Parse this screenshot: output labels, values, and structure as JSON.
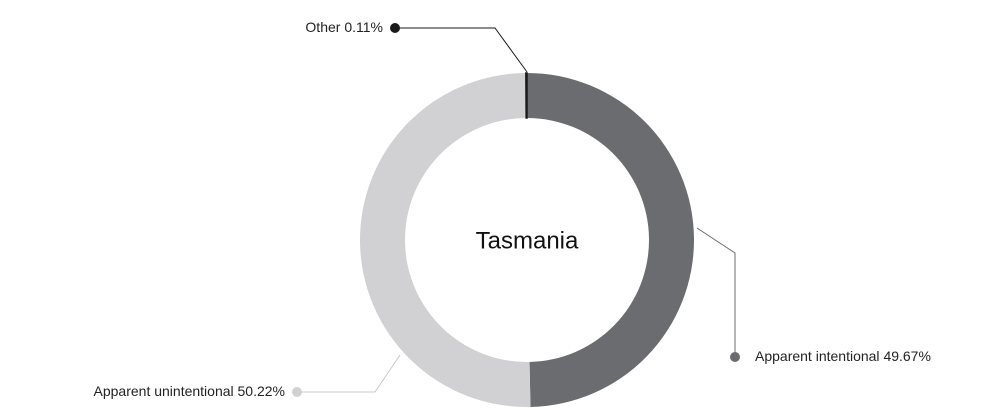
{
  "chart_data": {
    "type": "donut",
    "title": "Tasmania",
    "categories": [
      "Apparent intentional",
      "Apparent unintentional",
      "Other"
    ],
    "values": [
      49.67,
      50.22,
      0.11
    ],
    "value_labels": [
      "49.67%",
      "50.22%",
      "0.11%"
    ],
    "colors": [
      "#6b6c6f",
      "#d1d1d3",
      "#1a1a1a"
    ]
  }
}
